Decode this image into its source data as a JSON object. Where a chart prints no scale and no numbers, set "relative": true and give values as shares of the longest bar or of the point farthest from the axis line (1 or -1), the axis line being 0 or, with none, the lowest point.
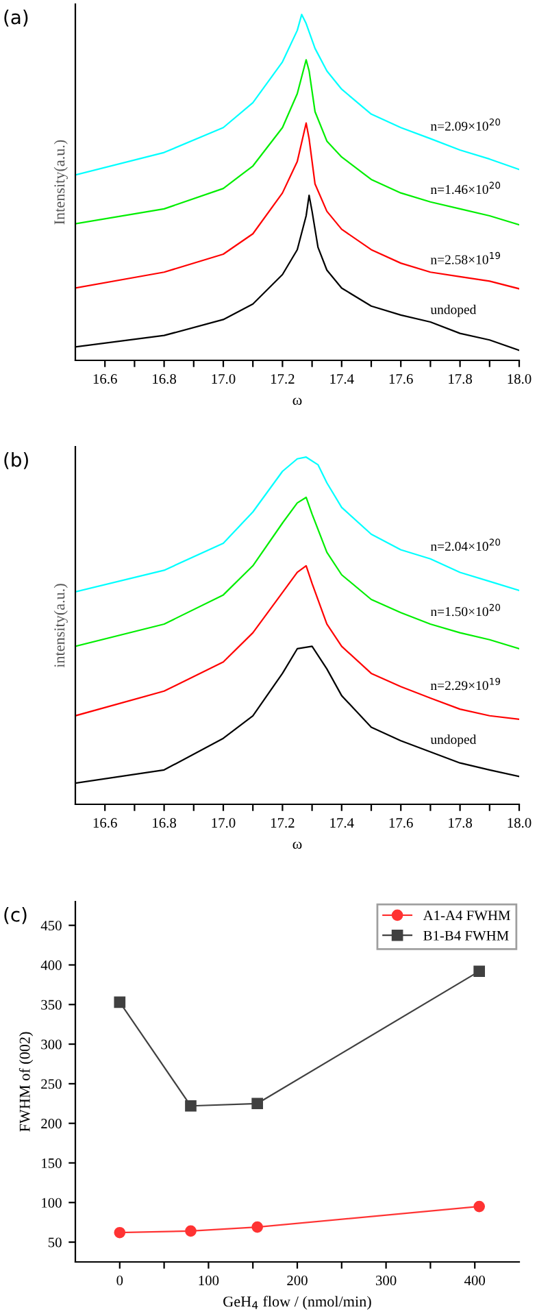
{
  "chart_data": [
    {
      "type": "line",
      "relative": true,
      "xlabel": "ω",
      "ylabel": "Intensity(a.u.)",
      "annotations": [
        "(a)"
      ],
      "tick_labels": "x",
      "xlim": [
        16.5,
        18.0
      ],
      "xticks": [
        16.6,
        {
          "value": 16.7,
          "label": null
        },
        16.8,
        {
          "value": 16.9,
          "label": null
        },
        {
          "value": 17.0,
          "label": "17.0"
        },
        {
          "value": 17.1,
          "label": null
        },
        17.2,
        {
          "value": 17.3,
          "label": null
        },
        17.4,
        {
          "value": 17.5,
          "label": null
        },
        17.6,
        {
          "value": 17.7,
          "label": null
        },
        17.8,
        {
          "value": 17.9,
          "label": null
        },
        {
          "value": 18.0,
          "label": "18.0"
        }
      ],
      "series": [
        {
          "name": "undoped",
          "color": "#000000",
          "x": [
            16.5,
            16.8,
            17.0,
            17.1,
            17.2,
            17.25,
            17.28,
            17.29,
            17.3,
            17.32,
            17.35,
            17.4,
            17.5,
            17.6,
            17.7,
            17.8,
            17.9,
            18.0
          ],
          "values": [
            0.039,
            0.072,
            0.118,
            0.163,
            0.248,
            0.32,
            0.418,
            0.477,
            0.431,
            0.327,
            0.261,
            0.209,
            0.157,
            0.131,
            0.111,
            0.078,
            0.059,
            0.029
          ]
        },
        {
          "name": "n=2.58×10$^{19}$",
          "color": "#ff0000",
          "x": [
            16.5,
            16.8,
            17.0,
            17.1,
            17.2,
            17.25,
            17.28,
            17.29,
            17.31,
            17.35,
            17.4,
            17.5,
            17.6,
            17.7,
            17.8,
            17.9,
            18.0
          ],
          "values": [
            0.209,
            0.255,
            0.307,
            0.366,
            0.484,
            0.575,
            0.686,
            0.641,
            0.51,
            0.431,
            0.379,
            0.32,
            0.281,
            0.255,
            0.242,
            0.229,
            0.207
          ]
        },
        {
          "name": "n=1.46×10$^{20}$",
          "color": "#00ee00",
          "x": [
            16.5,
            16.8,
            17.0,
            17.1,
            17.2,
            17.25,
            17.28,
            17.29,
            17.31,
            17.35,
            17.4,
            17.5,
            17.6,
            17.7,
            17.8,
            17.9,
            18.0
          ],
          "values": [
            0.395,
            0.438,
            0.497,
            0.562,
            0.673,
            0.771,
            0.869,
            0.837,
            0.719,
            0.634,
            0.588,
            0.523,
            0.484,
            0.458,
            0.438,
            0.418,
            0.392
          ]
        },
        {
          "name": "n=2.09×10$^{20}$",
          "color": "#00ffff",
          "x": [
            16.5,
            16.8,
            17.0,
            17.1,
            17.2,
            17.25,
            17.265,
            17.28,
            17.31,
            17.35,
            17.4,
            17.5,
            17.6,
            17.7,
            17.8,
            17.9,
            18.0
          ],
          "values": [
            0.536,
            0.601,
            0.673,
            0.745,
            0.863,
            0.954,
            1.0,
            0.974,
            0.902,
            0.837,
            0.784,
            0.712,
            0.673,
            0.641,
            0.608,
            0.582,
            0.552
          ]
        }
      ]
    },
    {
      "type": "line",
      "relative": true,
      "xlabel": "ω",
      "ylabel": "intensity(a.u.)",
      "annotations": [
        "(b)"
      ],
      "tick_labels": "x",
      "xlim": [
        16.5,
        18.0
      ],
      "xticks": [
        16.6,
        {
          "value": 16.7,
          "label": null
        },
        16.8,
        {
          "value": 16.9,
          "label": null
        },
        {
          "value": 17.0,
          "label": "17.0"
        },
        {
          "value": 17.1,
          "label": null
        },
        17.2,
        {
          "value": 17.3,
          "label": null
        },
        17.4,
        {
          "value": 17.5,
          "label": null
        },
        17.6,
        {
          "value": 17.7,
          "label": null
        },
        17.8,
        {
          "value": 17.9,
          "label": null
        },
        {
          "value": 18.0,
          "label": "18.0"
        }
      ],
      "series": [
        {
          "name": "undoped",
          "color": "#000000",
          "x": [
            16.5,
            16.8,
            17.0,
            17.1,
            17.2,
            17.25,
            17.3,
            17.35,
            17.4,
            17.5,
            17.6,
            17.7,
            17.8,
            17.9,
            18.0
          ],
          "values": [
            0.061,
            0.099,
            0.19,
            0.255,
            0.377,
            0.448,
            0.455,
            0.39,
            0.313,
            0.222,
            0.183,
            0.151,
            0.119,
            0.099,
            0.08
          ]
        },
        {
          "name": "n=2.29×10$^{19}$",
          "color": "#ff0000",
          "x": [
            16.5,
            16.8,
            17.0,
            17.1,
            17.2,
            17.25,
            17.28,
            17.3,
            17.35,
            17.4,
            17.5,
            17.6,
            17.7,
            17.8,
            17.9,
            18.0
          ],
          "values": [
            0.255,
            0.326,
            0.41,
            0.494,
            0.61,
            0.668,
            0.687,
            0.636,
            0.519,
            0.455,
            0.377,
            0.339,
            0.306,
            0.274,
            0.255,
            0.245
          ]
        },
        {
          "name": "n=1.50×10$^{20}$",
          "color": "#00ee00",
          "x": [
            16.5,
            16.8,
            17.0,
            17.1,
            17.2,
            17.25,
            17.28,
            17.3,
            17.35,
            17.4,
            17.5,
            17.6,
            17.7,
            17.8,
            17.9,
            18.0
          ],
          "values": [
            0.455,
            0.519,
            0.603,
            0.687,
            0.81,
            0.868,
            0.884,
            0.836,
            0.726,
            0.661,
            0.59,
            0.552,
            0.519,
            0.494,
            0.474,
            0.448
          ]
        },
        {
          "name": "n=2.04×10$^{20}$",
          "color": "#00ffff",
          "x": [
            16.5,
            16.8,
            17.0,
            17.1,
            17.2,
            17.25,
            17.28,
            17.32,
            17.35,
            17.4,
            17.5,
            17.6,
            17.7,
            17.8,
            17.9,
            18.0
          ],
          "values": [
            0.612,
            0.674,
            0.752,
            0.842,
            0.959,
            0.995,
            1.0,
            0.978,
            0.926,
            0.855,
            0.778,
            0.733,
            0.707,
            0.668,
            0.642,
            0.616
          ]
        }
      ]
    },
    {
      "type": "line",
      "xlabel": "GeH$_{4}$ flow / (nmol/min)",
      "ylabel": "FWHM of (002)",
      "annotations": [
        "(c)"
      ],
      "legend": "top right",
      "xlim": [
        -50,
        450
      ],
      "ylim": [
        25,
        480
      ],
      "xticks": [
        0,
        {
          "value": 50,
          "label": null
        },
        100,
        {
          "value": 150,
          "label": null
        },
        200,
        {
          "value": 250,
          "label": null
        },
        300,
        {
          "value": 350,
          "label": null
        },
        400
      ],
      "yticks": [
        50,
        100,
        150,
        200,
        250,
        300,
        350,
        400,
        450
      ],
      "series": [
        {
          "name": "A1-A4 FWHM",
          "color": "#ff3333",
          "marker": "circle",
          "x": [
            0,
            80,
            155,
            405
          ],
          "values": [
            62,
            64,
            69,
            95
          ]
        },
        {
          "name": "B1-B4 FWHM",
          "color": "#404040",
          "marker": "square",
          "x": [
            0,
            80,
            155,
            405
          ],
          "values": [
            353,
            222,
            225,
            392
          ]
        }
      ]
    }
  ]
}
